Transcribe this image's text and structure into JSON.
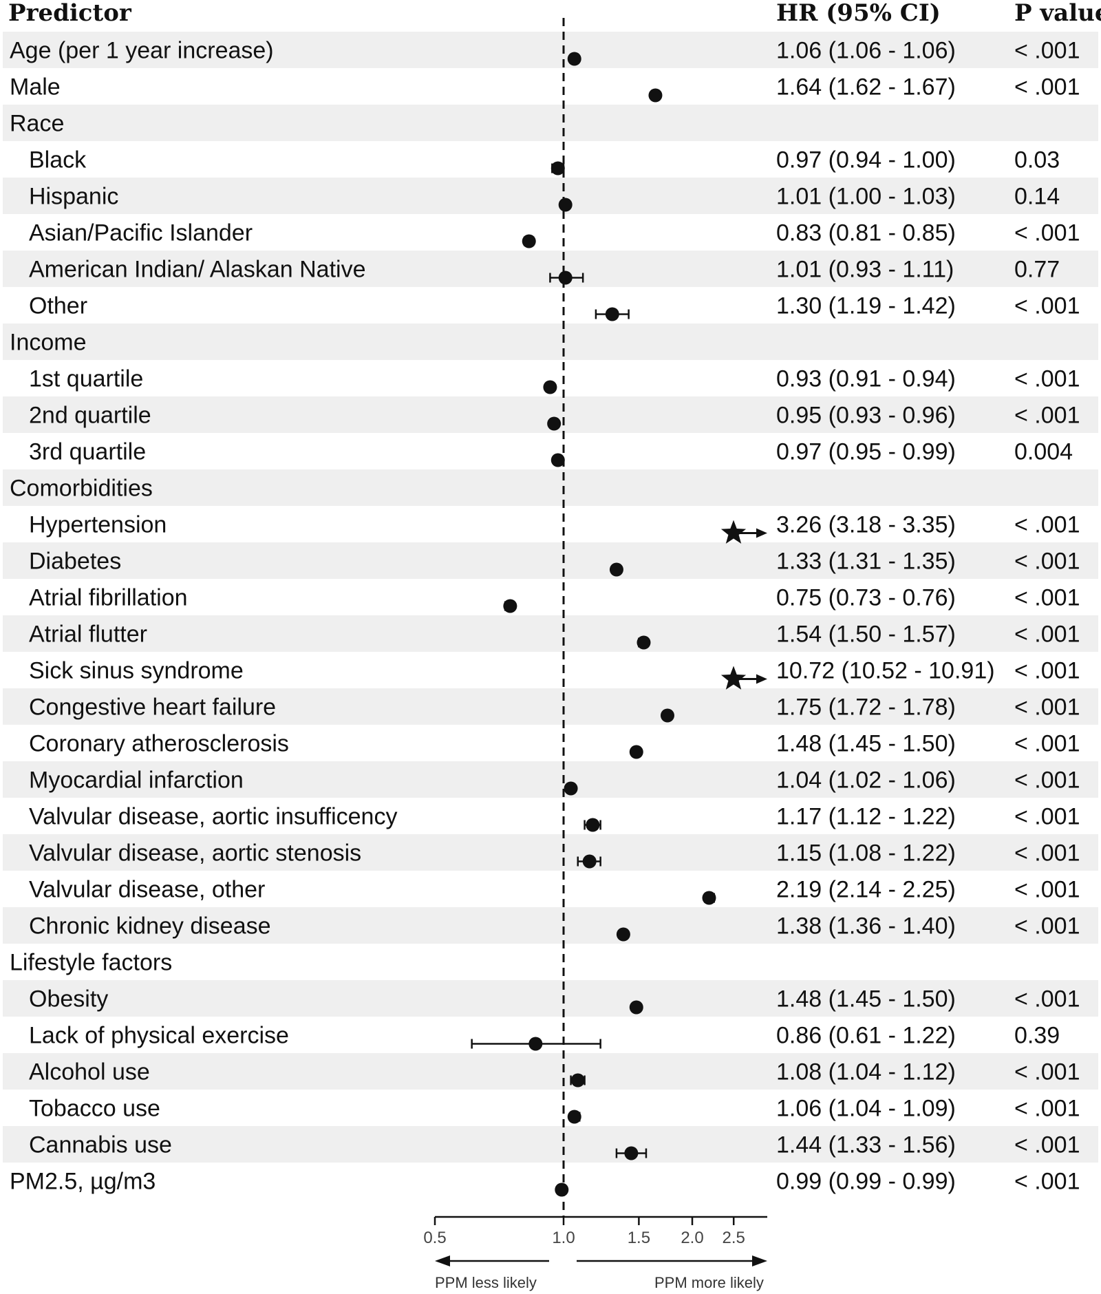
{
  "headers": {
    "predictor": "Predictor",
    "hr": "HR (95% CI)",
    "p": "P value"
  },
  "chart_data": {
    "type": "forest",
    "x_scale": "log",
    "xlim": [
      0.5,
      3.0
    ],
    "reference_line": 1.0,
    "x_ticks": [
      "0.5",
      "1.0",
      "1.5",
      "2.0",
      "2.5"
    ],
    "x_tick_values": [
      0.5,
      1.0,
      1.5,
      2.0,
      2.5
    ],
    "arrow_labels": {
      "left": "PPM less likely",
      "right": "PPM more likely"
    },
    "rows": [
      {
        "label": "Age (per 1 year increase)",
        "indent": false,
        "hr": 1.06,
        "lo": 1.06,
        "hi": 1.06,
        "ci_text": "1.06 (1.06 - 1.06)",
        "p": "< .001",
        "marker": "dot"
      },
      {
        "label": "Male",
        "indent": false,
        "hr": 1.64,
        "lo": 1.62,
        "hi": 1.67,
        "ci_text": "1.64 (1.62 - 1.67)",
        "p": "< .001",
        "marker": "dot"
      },
      {
        "label": "Race",
        "indent": false,
        "header": true
      },
      {
        "label": "Black",
        "indent": true,
        "hr": 0.97,
        "lo": 0.94,
        "hi": 1.0,
        "ci_text": "0.97 (0.94 - 1.00)",
        "p": "0.03",
        "marker": "dot"
      },
      {
        "label": "Hispanic",
        "indent": true,
        "hr": 1.01,
        "lo": 1.0,
        "hi": 1.03,
        "ci_text": "1.01 (1.00 - 1.03)",
        "p": "0.14",
        "marker": "dot"
      },
      {
        "label": "Asian/Pacific Islander",
        "indent": true,
        "hr": 0.83,
        "lo": 0.81,
        "hi": 0.85,
        "ci_text": "0.83 (0.81 - 0.85)",
        "p": "< .001",
        "marker": "dot"
      },
      {
        "label": "American Indian/ Alaskan Native",
        "indent": true,
        "hr": 1.01,
        "lo": 0.93,
        "hi": 1.11,
        "ci_text": "1.01 (0.93 - 1.11)",
        "p": "0.77",
        "marker": "dot"
      },
      {
        "label": "Other",
        "indent": true,
        "hr": 1.3,
        "lo": 1.19,
        "hi": 1.42,
        "ci_text": "1.30 (1.19 - 1.42)",
        "p": "< .001",
        "marker": "dot"
      },
      {
        "label": "Income",
        "indent": false,
        "header": true
      },
      {
        "label": "1st quartile",
        "indent": true,
        "hr": 0.93,
        "lo": 0.91,
        "hi": 0.94,
        "ci_text": "0.93 (0.91 - 0.94)",
        "p": "< .001",
        "marker": "dot"
      },
      {
        "label": "2nd quartile",
        "indent": true,
        "hr": 0.95,
        "lo": 0.93,
        "hi": 0.96,
        "ci_text": "0.95 (0.93 - 0.96)",
        "p": "< .001",
        "marker": "dot"
      },
      {
        "label": "3rd quartile",
        "indent": true,
        "hr": 0.97,
        "lo": 0.95,
        "hi": 0.99,
        "ci_text": "0.97 (0.95 - 0.99)",
        "p": "0.004",
        "marker": "dot"
      },
      {
        "label": "Comorbidities",
        "indent": false,
        "header": true
      },
      {
        "label": "Hypertension",
        "indent": true,
        "hr": 3.26,
        "lo": 3.18,
        "hi": 3.35,
        "ci_text": "3.26 (3.18 - 3.35)",
        "p": "< .001",
        "marker": "star"
      },
      {
        "label": "Diabetes",
        "indent": true,
        "hr": 1.33,
        "lo": 1.31,
        "hi": 1.35,
        "ci_text": "1.33 (1.31 - 1.35)",
        "p": "< .001",
        "marker": "dot"
      },
      {
        "label": "Atrial fibrillation",
        "indent": true,
        "hr": 0.75,
        "lo": 0.73,
        "hi": 0.76,
        "ci_text": "0.75 (0.73 - 0.76)",
        "p": "< .001",
        "marker": "dot"
      },
      {
        "label": "Atrial flutter",
        "indent": true,
        "hr": 1.54,
        "lo": 1.5,
        "hi": 1.57,
        "ci_text": "1.54 (1.50 - 1.57)",
        "p": "< .001",
        "marker": "dot"
      },
      {
        "label": "Sick sinus syndrome",
        "indent": true,
        "hr": 10.72,
        "lo": 10.52,
        "hi": 10.91,
        "ci_text": "10.72 (10.52 - 10.91)",
        "p": "< .001",
        "marker": "star"
      },
      {
        "label": "Congestive heart failure",
        "indent": true,
        "hr": 1.75,
        "lo": 1.72,
        "hi": 1.78,
        "ci_text": "1.75 (1.72 - 1.78)",
        "p": "< .001",
        "marker": "dot"
      },
      {
        "label": "Coronary atherosclerosis",
        "indent": true,
        "hr": 1.48,
        "lo": 1.45,
        "hi": 1.5,
        "ci_text": "1.48 (1.45 - 1.50)",
        "p": "< .001",
        "marker": "dot"
      },
      {
        "label": "Myocardial infarction",
        "indent": true,
        "hr": 1.04,
        "lo": 1.02,
        "hi": 1.06,
        "ci_text": "1.04 (1.02 - 1.06)",
        "p": "< .001",
        "marker": "dot"
      },
      {
        "label": "Valvular disease, aortic insufficency",
        "indent": true,
        "hr": 1.17,
        "lo": 1.12,
        "hi": 1.22,
        "ci_text": "1.17 (1.12 - 1.22)",
        "p": "< .001",
        "marker": "dot"
      },
      {
        "label": "Valvular disease, aortic stenosis",
        "indent": true,
        "hr": 1.15,
        "lo": 1.08,
        "hi": 1.22,
        "ci_text": "1.15 (1.08 - 1.22)",
        "p": "< .001",
        "marker": "dot"
      },
      {
        "label": "Valvular disease, other",
        "indent": true,
        "hr": 2.19,
        "lo": 2.14,
        "hi": 2.25,
        "ci_text": "2.19 (2.14 - 2.25)",
        "p": "< .001",
        "marker": "dot"
      },
      {
        "label": "Chronic kidney disease",
        "indent": true,
        "hr": 1.38,
        "lo": 1.36,
        "hi": 1.4,
        "ci_text": "1.38 (1.36 - 1.40)",
        "p": "< .001",
        "marker": "dot"
      },
      {
        "label": "Lifestyle factors",
        "indent": false,
        "header": true
      },
      {
        "label": "Obesity",
        "indent": true,
        "hr": 1.48,
        "lo": 1.45,
        "hi": 1.5,
        "ci_text": "1.48 (1.45 - 1.50)",
        "p": "< .001",
        "marker": "dot"
      },
      {
        "label": "Lack of physical exercise",
        "indent": true,
        "hr": 0.86,
        "lo": 0.61,
        "hi": 1.22,
        "ci_text": "0.86 (0.61 - 1.22)",
        "p": "0.39",
        "marker": "dot"
      },
      {
        "label": "Alcohol use",
        "indent": true,
        "hr": 1.08,
        "lo": 1.04,
        "hi": 1.12,
        "ci_text": "1.08 (1.04 - 1.12)",
        "p": "< .001",
        "marker": "dot"
      },
      {
        "label": "Tobacco use",
        "indent": true,
        "hr": 1.06,
        "lo": 1.04,
        "hi": 1.09,
        "ci_text": "1.06 (1.04 - 1.09)",
        "p": "< .001",
        "marker": "dot"
      },
      {
        "label": "Cannabis use",
        "indent": true,
        "hr": 1.44,
        "lo": 1.33,
        "hi": 1.56,
        "ci_text": "1.44 (1.33 - 1.56)",
        "p": "< .001",
        "marker": "dot"
      },
      {
        "label": "PM2.5, µg/m3",
        "indent": false,
        "hr": 0.99,
        "lo": 0.99,
        "hi": 0.99,
        "ci_text": "0.99 (0.99 - 0.99)",
        "p": "< .001",
        "marker": "dot"
      }
    ]
  },
  "colors": {
    "stripe": "#efefef",
    "ink": "#111111",
    "tick_text": "#444444"
  }
}
